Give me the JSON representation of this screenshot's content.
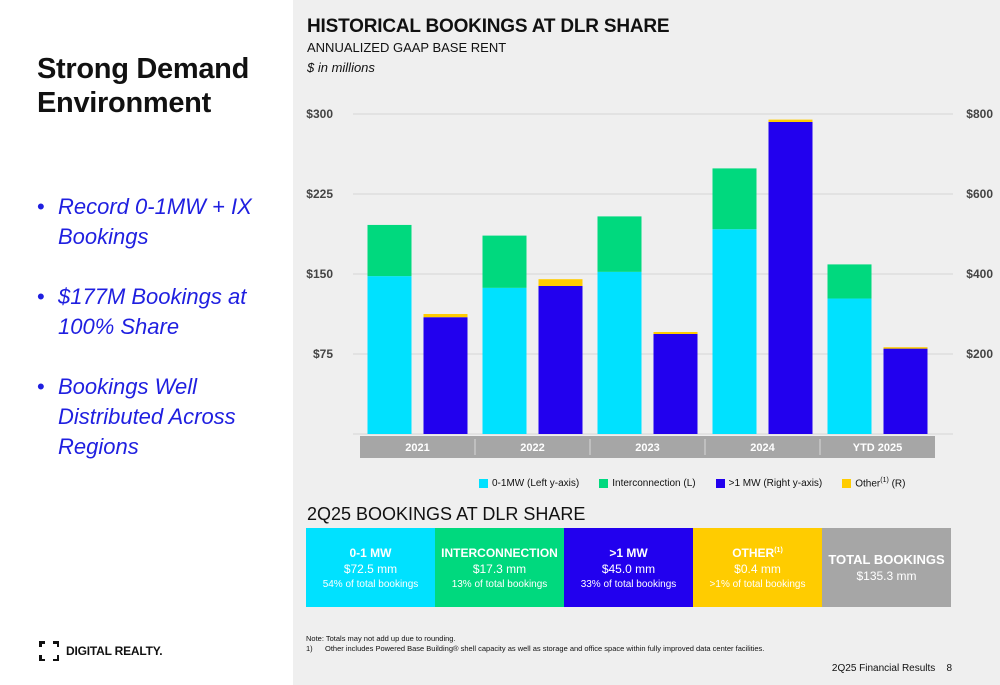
{
  "left": {
    "title_line1": "Strong Demand",
    "title_line2": "Environment",
    "bullets": [
      "Record 0-1MW + IX Bookings",
      "$177M Bookings at 100% Share",
      "Bookings Well Distributed Across Regions"
    ],
    "bullet_glyph": "•",
    "logo_text": "DIGITAL REALTY."
  },
  "header": {
    "title": "HISTORICAL BOOKINGS AT DLR SHARE",
    "subtitle": "ANNUALIZED GAAP BASE RENT",
    "unit": "$ in millions"
  },
  "colors": {
    "cyan": "#00e1ff",
    "green": "#00d97e",
    "blue": "#2200ee",
    "yellow": "#ffcc00",
    "gray": "#a6a6a6",
    "panel": "#efefef"
  },
  "chart_data": {
    "type": "bar",
    "categories": [
      "2021",
      "2022",
      "2023",
      "2024",
      "YTD 2025"
    ],
    "left_axis": {
      "ticks": [
        "$75",
        "$150",
        "$225",
        "$300"
      ],
      "tick_values": [
        75,
        150,
        225,
        300
      ],
      "ylim": [
        0,
        300
      ]
    },
    "right_axis": {
      "ticks": [
        "$200",
        "$400",
        "$600",
        "$800"
      ],
      "tick_values": [
        200,
        400,
        600,
        800
      ],
      "ylim": [
        0,
        800
      ]
    },
    "left_stack": {
      "axis": "left",
      "series": [
        {
          "name": "0-1MW (Left y-axis)",
          "color": "#00e1ff",
          "values": [
            148,
            137,
            152,
            192,
            127
          ]
        },
        {
          "name": "Interconnection (L)",
          "color": "#00d97e",
          "values": [
            48,
            49,
            52,
            57,
            32
          ]
        }
      ]
    },
    "right_stack": {
      "axis": "right",
      "series": [
        {
          "name": ">1 MW (Right y-axis)",
          "color": "#2200ee",
          "values": [
            292,
            370,
            250,
            780,
            215
          ]
        },
        {
          "name": "Other(1) (R)",
          "color": "#ffcc00",
          "values": [
            8,
            17,
            5,
            6,
            2
          ]
        }
      ]
    },
    "grid": true
  },
  "legend": [
    {
      "label": "0-1MW (Left y-axis)",
      "color": "#00e1ff"
    },
    {
      "label": "Interconnection (L)",
      "color": "#00d97e"
    },
    {
      "label": ">1 MW (Right y-axis)",
      "color": "#2200ee"
    },
    {
      "label_pre": "Other",
      "label_sup": "(1)",
      "label_post": " (R)",
      "color": "#ffcc00"
    }
  ],
  "section2": {
    "title": "2Q25 BOOKINGS AT DLR SHARE",
    "tiles": [
      {
        "name": "0-1 MW",
        "value": "$72.5 mm",
        "pct": "54% of total bookings",
        "color": "#00e1ff"
      },
      {
        "name": "INTERCONNECTION",
        "value": "$17.3 mm",
        "pct": "13% of total bookings",
        "color": "#00d97e"
      },
      {
        "name": ">1 MW",
        "value": "$45.0 mm",
        "pct": "33% of total bookings",
        "color": "#2200ee"
      },
      {
        "name": "OTHER",
        "name_sup": "(1)",
        "value": "$0.4 mm",
        "pct": ">1% of total bookings",
        "color": "#ffcc00"
      },
      {
        "name": "TOTAL BOOKINGS",
        "value": "$135.3 mm",
        "color": "#a6a6a6"
      }
    ]
  },
  "notes": {
    "note": "Note: Totals may not add up due to rounding.",
    "fn_num": "1)",
    "fn_text": "Other includes Powered Base Building® shell capacity as well as storage and office space within fully improved data center facilities."
  },
  "footer": {
    "label": "2Q25 Financial Results",
    "page": "8"
  }
}
